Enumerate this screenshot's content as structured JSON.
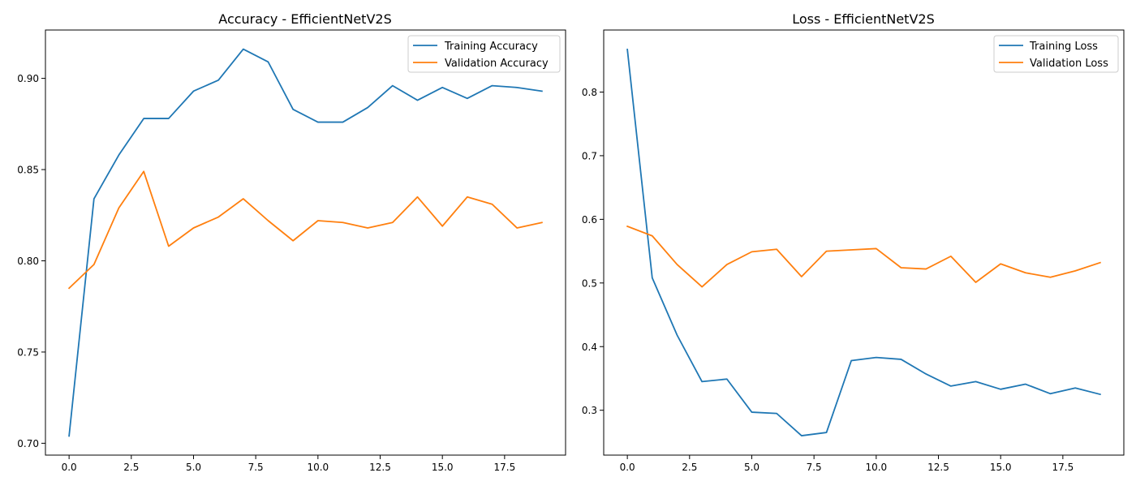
{
  "chart_data": [
    {
      "type": "line",
      "title": "Accuracy - EfficientNetV2S",
      "xlabel": "",
      "ylabel": "",
      "xlim": [
        -0.95,
        19.95
      ],
      "ylim": [
        0.6935,
        0.9265
      ],
      "xticks": [
        0,
        2.5,
        5,
        7.5,
        10,
        12.5,
        15,
        17.5
      ],
      "xtick_labels": [
        "0.0",
        "2.5",
        "5.0",
        "7.5",
        "10.0",
        "12.5",
        "15.0",
        "17.5"
      ],
      "yticks": [
        0.7,
        0.75,
        0.8,
        0.85,
        0.9
      ],
      "ytick_labels": [
        "0.70",
        "0.75",
        "0.80",
        "0.85",
        "0.90"
      ],
      "grid": false,
      "legend": "upper right",
      "x": [
        0,
        1,
        2,
        3,
        4,
        5,
        6,
        7,
        8,
        9,
        10,
        11,
        12,
        13,
        14,
        15,
        16,
        17,
        18,
        19
      ],
      "series": [
        {
          "name": "Training Accuracy",
          "color": "#1f77b4",
          "values": [
            0.704,
            0.834,
            0.858,
            0.878,
            0.878,
            0.893,
            0.899,
            0.916,
            0.909,
            0.883,
            0.876,
            0.876,
            0.884,
            0.896,
            0.888,
            0.895,
            0.889,
            0.896,
            0.895,
            0.893
          ]
        },
        {
          "name": "Validation Accuracy",
          "color": "#ff7f0e",
          "values": [
            0.785,
            0.798,
            0.829,
            0.849,
            0.808,
            0.818,
            0.824,
            0.834,
            0.822,
            0.811,
            0.822,
            0.821,
            0.818,
            0.821,
            0.835,
            0.819,
            0.835,
            0.831,
            0.818,
            0.821
          ]
        }
      ]
    },
    {
      "type": "line",
      "title": "Loss - EfficientNetV2S",
      "xlabel": "",
      "ylabel": "",
      "xlim": [
        -0.95,
        19.95
      ],
      "ylim": [
        0.2295,
        0.8975
      ],
      "xticks": [
        0,
        2.5,
        5,
        7.5,
        10,
        12.5,
        15,
        17.5
      ],
      "xtick_labels": [
        "0.0",
        "2.5",
        "5.0",
        "7.5",
        "10.0",
        "12.5",
        "15.0",
        "17.5"
      ],
      "yticks": [
        0.3,
        0.4,
        0.5,
        0.6,
        0.7,
        0.8
      ],
      "ytick_labels": [
        "0.3",
        "0.4",
        "0.5",
        "0.6",
        "0.7",
        "0.8"
      ],
      "grid": false,
      "legend": "upper right",
      "x": [
        0,
        1,
        2,
        3,
        4,
        5,
        6,
        7,
        8,
        9,
        10,
        11,
        12,
        13,
        14,
        15,
        16,
        17,
        18,
        19
      ],
      "series": [
        {
          "name": "Training Loss",
          "color": "#1f77b4",
          "values": [
            0.867,
            0.508,
            0.418,
            0.345,
            0.349,
            0.297,
            0.295,
            0.26,
            0.265,
            0.378,
            0.383,
            0.38,
            0.357,
            0.338,
            0.345,
            0.333,
            0.341,
            0.326,
            0.335,
            0.325
          ]
        },
        {
          "name": "Validation Loss",
          "color": "#ff7f0e",
          "values": [
            0.589,
            0.574,
            0.529,
            0.494,
            0.529,
            0.549,
            0.553,
            0.51,
            0.55,
            0.552,
            0.554,
            0.524,
            0.522,
            0.542,
            0.501,
            0.53,
            0.516,
            0.509,
            0.519,
            0.532
          ]
        }
      ]
    }
  ]
}
